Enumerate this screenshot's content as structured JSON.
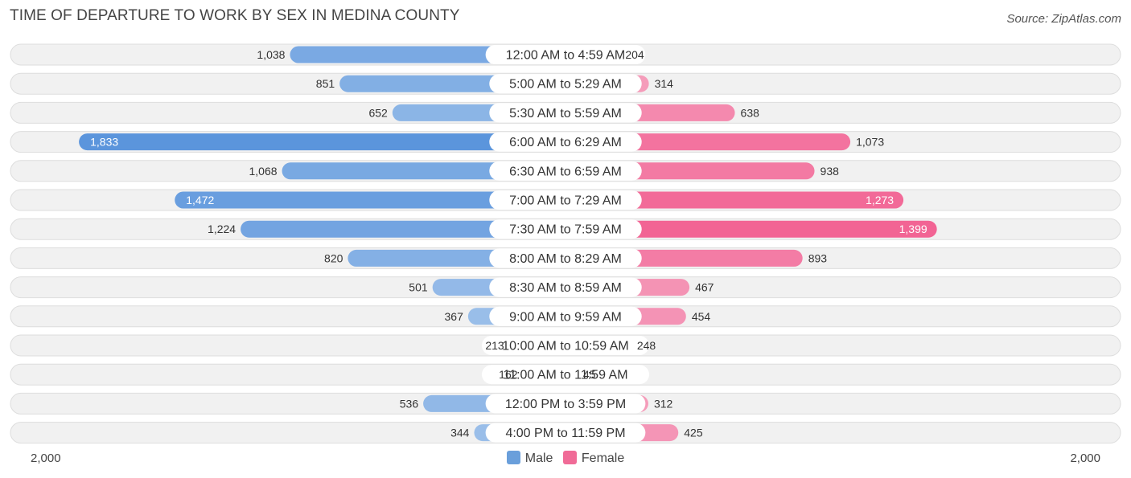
{
  "chart_data": {
    "type": "bar",
    "orientation": "horizontal-diverging",
    "title": "TIME OF DEPARTURE TO WORK BY SEX IN MEDINA COUNTY",
    "source": "Source: ZipAtlas.com",
    "categories": [
      "12:00 AM to 4:59 AM",
      "5:00 AM to 5:29 AM",
      "5:30 AM to 5:59 AM",
      "6:00 AM to 6:29 AM",
      "6:30 AM to 6:59 AM",
      "7:00 AM to 7:29 AM",
      "7:30 AM to 7:59 AM",
      "8:00 AM to 8:29 AM",
      "8:30 AM to 8:59 AM",
      "9:00 AM to 9:59 AM",
      "10:00 AM to 10:59 AM",
      "11:00 AM to 11:59 AM",
      "12:00 PM to 3:59 PM",
      "4:00 PM to 11:59 PM"
    ],
    "series": [
      {
        "name": "Male",
        "color": "#6a9fdb",
        "values": [
          1038,
          851,
          652,
          1833,
          1068,
          1472,
          1224,
          820,
          501,
          367,
          213,
          162,
          536,
          344
        ],
        "labels": [
          "1,038",
          "851",
          "652",
          "1,833",
          "1,068",
          "1,472",
          "1,224",
          "820",
          "501",
          "367",
          "213",
          "162",
          "536",
          "344"
        ]
      },
      {
        "name": "Female",
        "color": "#f06b97",
        "values": [
          204,
          314,
          638,
          1073,
          938,
          1273,
          1399,
          893,
          467,
          454,
          248,
          45,
          312,
          425
        ],
        "labels": [
          "204",
          "314",
          "638",
          "1,073",
          "938",
          "1,273",
          "1,399",
          "893",
          "467",
          "454",
          "248",
          "45",
          "312",
          "425"
        ]
      }
    ],
    "xlim": [
      -2000,
      2000
    ],
    "axis_left_label": "2,000",
    "axis_right_label": "2,000",
    "legend": [
      "Male",
      "Female"
    ]
  }
}
